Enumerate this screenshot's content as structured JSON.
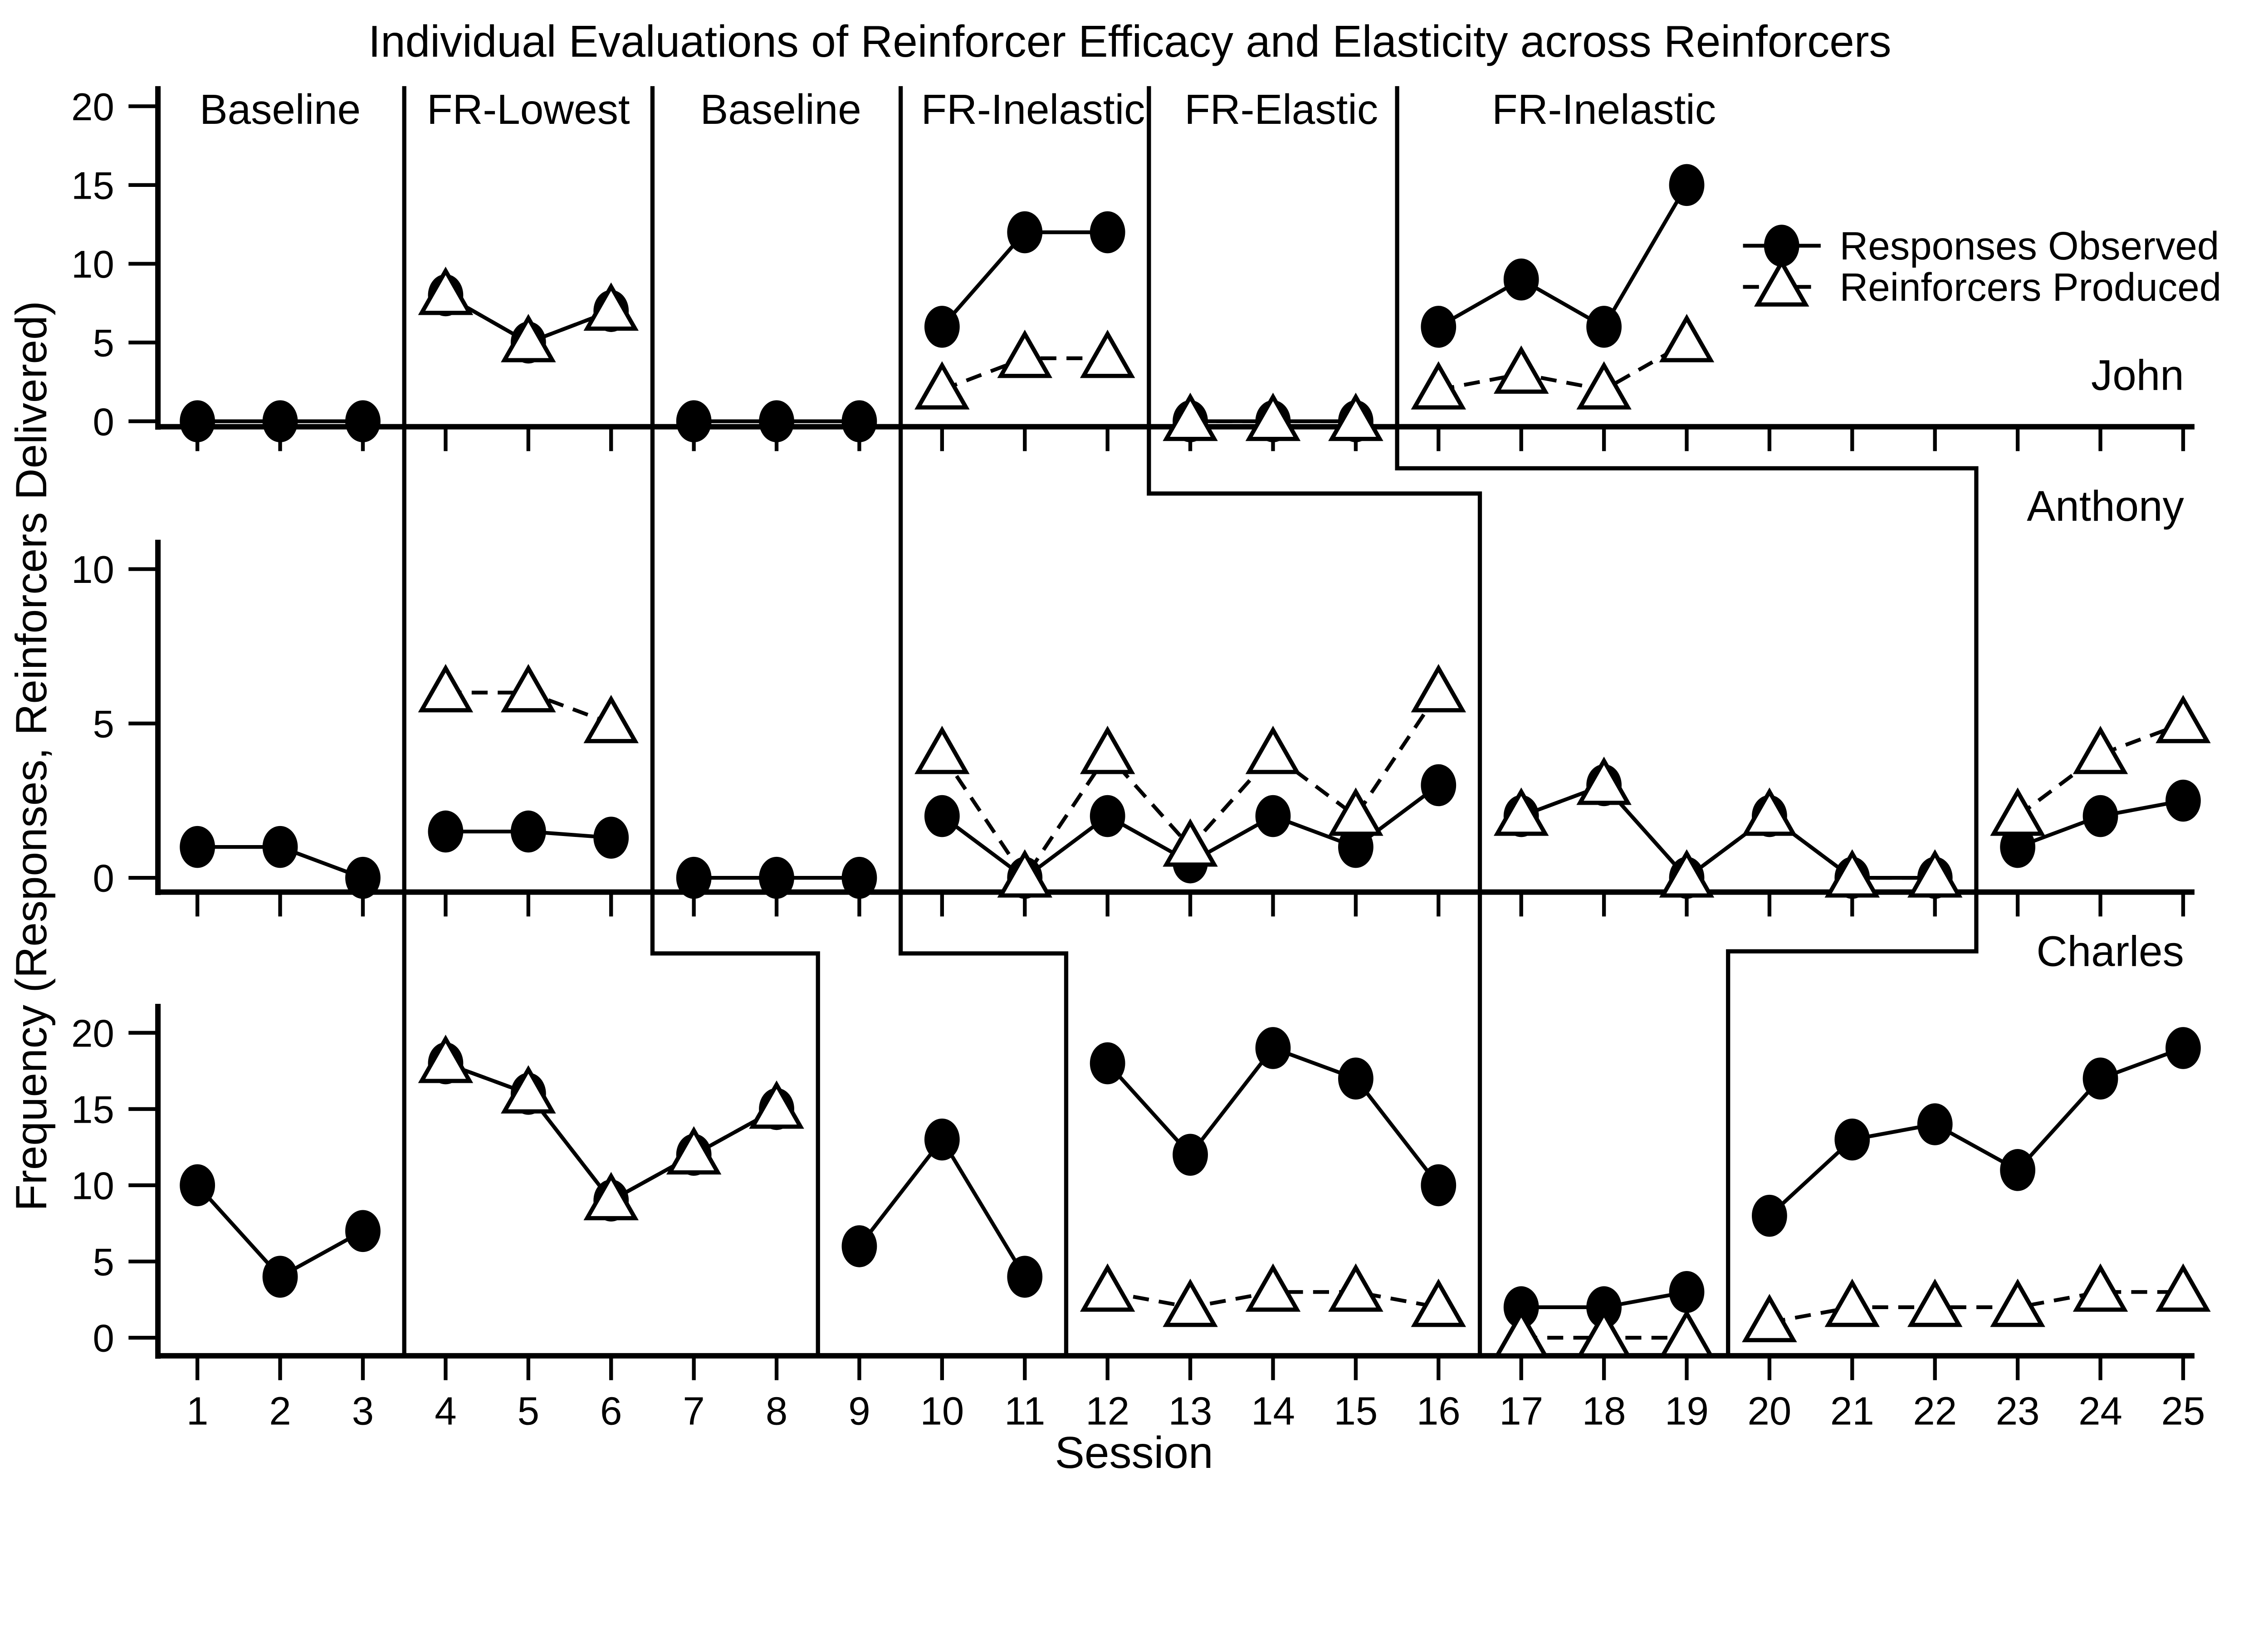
{
  "chart_data": {
    "type": "line",
    "title": "Individual Evaluations of Reinforcer Efficacy and Elasticity across Reinforcers",
    "xlabel": "Session",
    "ylabel": "Frequency (Responses, Reinforcers Delivered)",
    "x_ticks": [
      1,
      2,
      3,
      4,
      5,
      6,
      7,
      8,
      9,
      10,
      11,
      12,
      13,
      14,
      15,
      16,
      17,
      18,
      19,
      20,
      21,
      22,
      23,
      24,
      25
    ],
    "x_range": [
      1,
      25
    ],
    "grid": false,
    "colors": {
      "foreground": "#000000",
      "background": "#ffffff"
    },
    "legend": {
      "position": "upper-right-of-john-panel",
      "entries": [
        {
          "label": "Responses Observed",
          "marker": "filled-circle",
          "line": "solid"
        },
        {
          "label": "Reinforcers Produced",
          "marker": "open-triangle",
          "line": "dashed"
        }
      ]
    },
    "phase_labels": [
      {
        "label": "Baseline",
        "x_session": 2.0
      },
      {
        "label": "FR-Lowest",
        "x_session": 5.0
      },
      {
        "label": "Baseline",
        "x_session": 8.05
      },
      {
        "label": "FR-Inelastic",
        "x_session": 11.1
      },
      {
        "label": "FR-Elastic",
        "x_session": 14.1
      },
      {
        "label": "FR-Inelastic",
        "x_session": 18.0
      }
    ],
    "phase_change_lines": [
      [
        [
          3.5,
          "top"
        ],
        [
          3.5,
          "bottom"
        ]
      ],
      [
        [
          6.5,
          "top"
        ],
        [
          6.5,
          "step2"
        ],
        [
          8.5,
          "step2"
        ],
        [
          8.5,
          "bottom"
        ]
      ],
      [
        [
          9.5,
          "top"
        ],
        [
          9.5,
          "step2"
        ],
        [
          11.5,
          "step2"
        ],
        [
          11.5,
          "bottom"
        ]
      ],
      [
        [
          12.5,
          "top"
        ],
        [
          12.5,
          "step1b"
        ],
        [
          16.5,
          "step1b"
        ],
        [
          16.5,
          "bottom"
        ]
      ],
      [
        [
          15.5,
          "top"
        ],
        [
          15.5,
          "step1a"
        ],
        [
          22.5,
          "step1a"
        ],
        [
          22.5,
          "step2a"
        ],
        [
          19.5,
          "step2a"
        ],
        [
          19.5,
          "bottom"
        ]
      ]
    ],
    "subjects": [
      {
        "name": "John",
        "ylim": [
          0,
          20
        ],
        "yticks": [
          0,
          5,
          10,
          15,
          20
        ],
        "phases": [
          {
            "label": "Baseline",
            "sessions": [
              1,
              3
            ]
          },
          {
            "label": "FR-Lowest",
            "sessions": [
              4,
              6
            ]
          },
          {
            "label": "Baseline",
            "sessions": [
              7,
              9
            ]
          },
          {
            "label": "FR-Inelastic",
            "sessions": [
              10,
              12
            ]
          },
          {
            "label": "FR-Elastic",
            "sessions": [
              13,
              15
            ]
          },
          {
            "label": "FR-Inelastic",
            "sessions": [
              16,
              19
            ]
          }
        ],
        "response_segments": [
          [
            [
              1,
              0
            ],
            [
              2,
              0
            ],
            [
              3,
              0
            ]
          ],
          [
            [
              4,
              8
            ],
            [
              5,
              5
            ],
            [
              6,
              7
            ]
          ],
          [
            [
              7,
              0
            ],
            [
              8,
              0
            ],
            [
              9,
              0
            ]
          ],
          [
            [
              10,
              6
            ],
            [
              11,
              12
            ],
            [
              12,
              12
            ]
          ],
          [
            [
              13,
              0
            ],
            [
              14,
              0
            ],
            [
              15,
              0
            ]
          ],
          [
            [
              16,
              6
            ],
            [
              17,
              9
            ],
            [
              18,
              6
            ],
            [
              19,
              15
            ]
          ]
        ],
        "reinforcer_segments": [
          [
            [
              4,
              8
            ],
            [
              5,
              5
            ],
            [
              6,
              7
            ]
          ],
          [
            [
              10,
              2
            ],
            [
              11,
              4
            ],
            [
              12,
              4
            ]
          ],
          [
            [
              13,
              0
            ],
            [
              14,
              0
            ],
            [
              15,
              0
            ]
          ],
          [
            [
              16,
              2
            ],
            [
              17,
              3
            ],
            [
              18,
              2
            ],
            [
              19,
              5
            ]
          ]
        ]
      },
      {
        "name": "Anthony",
        "ylim": [
          0,
          10
        ],
        "yticks": [
          0,
          5,
          10
        ],
        "phases": [
          {
            "label": "Baseline",
            "sessions": [
              1,
              3
            ]
          },
          {
            "label": "FR-Lowest",
            "sessions": [
              4,
              6
            ]
          },
          {
            "label": "Baseline",
            "sessions": [
              7,
              9
            ]
          },
          {
            "label": "FR-Inelastic",
            "sessions": [
              10,
              16
            ]
          },
          {
            "label": "FR-Elastic",
            "sessions": [
              17,
              22
            ]
          },
          {
            "label": "FR-Inelastic",
            "sessions": [
              23,
              25
            ]
          }
        ],
        "response_segments": [
          [
            [
              1,
              1
            ],
            [
              2,
              1
            ],
            [
              3,
              0
            ]
          ],
          [
            [
              4,
              1.5
            ],
            [
              5,
              1.5
            ],
            [
              6,
              1.3
            ]
          ],
          [
            [
              7,
              0
            ],
            [
              8,
              0
            ],
            [
              9,
              0
            ]
          ],
          [
            [
              10,
              2
            ],
            [
              11,
              0
            ],
            [
              12,
              2
            ],
            [
              13,
              0.5
            ],
            [
              14,
              2
            ],
            [
              15,
              1
            ],
            [
              16,
              3
            ]
          ],
          [
            [
              17,
              2
            ],
            [
              18,
              3
            ],
            [
              19,
              0
            ],
            [
              20,
              2
            ],
            [
              21,
              0
            ],
            [
              22,
              0
            ]
          ],
          [
            [
              23,
              1
            ],
            [
              24,
              2
            ],
            [
              25,
              2.5
            ]
          ]
        ],
        "reinforcer_segments": [
          [
            [
              4,
              6
            ],
            [
              5,
              6
            ],
            [
              6,
              5
            ]
          ],
          [
            [
              10,
              4
            ],
            [
              11,
              0
            ],
            [
              12,
              4
            ],
            [
              13,
              1
            ],
            [
              14,
              4
            ],
            [
              15,
              2
            ],
            [
              16,
              6
            ]
          ],
          [
            [
              17,
              2
            ],
            [
              18,
              3
            ],
            [
              19,
              0
            ],
            [
              20,
              2
            ],
            [
              21,
              0
            ],
            [
              22,
              0
            ]
          ],
          [
            [
              23,
              2
            ],
            [
              24,
              4
            ],
            [
              25,
              5
            ]
          ]
        ]
      },
      {
        "name": "Charles",
        "ylim": [
          0,
          20
        ],
        "yticks": [
          0,
          5,
          10,
          15,
          20
        ],
        "phases": [
          {
            "label": "Baseline",
            "sessions": [
              1,
              3
            ]
          },
          {
            "label": "FR-Lowest",
            "sessions": [
              4,
              8
            ]
          },
          {
            "label": "Baseline",
            "sessions": [
              9,
              11
            ]
          },
          {
            "label": "FR-Inelastic",
            "sessions": [
              12,
              16
            ]
          },
          {
            "label": "FR-Elastic",
            "sessions": [
              17,
              19
            ]
          },
          {
            "label": "FR-Inelastic",
            "sessions": [
              20,
              25
            ]
          }
        ],
        "response_segments": [
          [
            [
              1,
              10
            ],
            [
              2,
              4
            ],
            [
              3,
              7
            ]
          ],
          [
            [
              4,
              18
            ],
            [
              5,
              16
            ],
            [
              6,
              9
            ],
            [
              7,
              12
            ],
            [
              8,
              15
            ]
          ],
          [
            [
              9,
              6
            ],
            [
              10,
              13
            ],
            [
              11,
              4
            ]
          ],
          [
            [
              12,
              18
            ],
            [
              13,
              12
            ],
            [
              14,
              19
            ],
            [
              15,
              17
            ],
            [
              16,
              10
            ]
          ],
          [
            [
              17,
              2
            ],
            [
              18,
              2
            ],
            [
              19,
              3
            ]
          ],
          [
            [
              20,
              8
            ],
            [
              21,
              13
            ],
            [
              22,
              14
            ],
            [
              23,
              11
            ],
            [
              24,
              17
            ],
            [
              25,
              19
            ]
          ]
        ],
        "reinforcer_segments": [
          [
            [
              4,
              18
            ],
            [
              5,
              16
            ],
            [
              6,
              9
            ],
            [
              7,
              12
            ],
            [
              8,
              15
            ]
          ],
          [
            [
              12,
              3
            ],
            [
              13,
              2
            ],
            [
              14,
              3
            ],
            [
              15,
              3
            ],
            [
              16,
              2
            ]
          ],
          [
            [
              17,
              0
            ],
            [
              18,
              0
            ],
            [
              19,
              0
            ]
          ],
          [
            [
              20,
              1
            ],
            [
              21,
              2
            ],
            [
              22,
              2
            ],
            [
              23,
              2
            ],
            [
              24,
              3
            ],
            [
              25,
              3
            ]
          ]
        ]
      }
    ]
  }
}
